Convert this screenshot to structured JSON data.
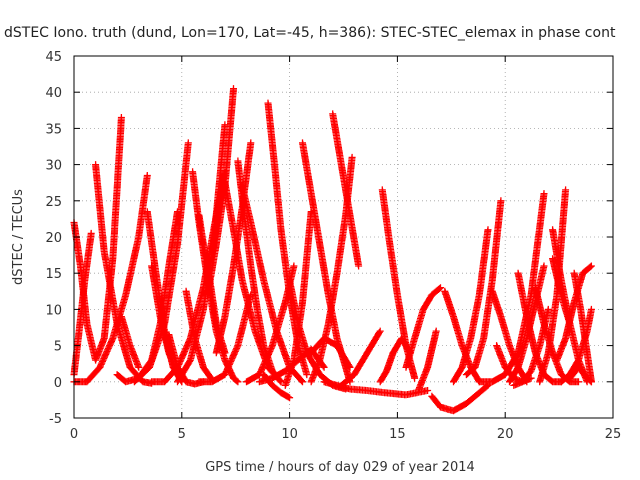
{
  "chart_data": {
    "type": "scatter",
    "title": "dSTEC Iono. truth (dund, Lon=170, Lat=-45, h=386): STEC-STEC_elemax in phase cont",
    "xlabel": "GPS time / hours of day 029 of year 2014",
    "ylabel": "dSTEC  / TECUs",
    "xlim": [
      0,
      25
    ],
    "ylim": [
      -5,
      45
    ],
    "xticks": [
      0,
      5,
      10,
      15,
      20,
      25
    ],
    "yticks": [
      -5,
      0,
      5,
      10,
      15,
      20,
      25,
      30,
      35,
      40,
      45
    ],
    "grid": true,
    "legend": "none",
    "marker": "plus",
    "color": "#ff0000",
    "arcs": [
      {
        "x": [
          0.0,
          0.3,
          0.6,
          1.0,
          1.4,
          1.8,
          2.2
        ],
        "y": [
          22,
          16,
          8,
          3,
          6,
          17,
          36.5
        ]
      },
      {
        "x": [
          0.0,
          0.2,
          0.5,
          0.8
        ],
        "y": [
          1,
          6,
          14,
          20.5
        ]
      },
      {
        "x": [
          0.0,
          0.6,
          1.2,
          1.8,
          2.4,
          3.0,
          3.4
        ],
        "y": [
          0,
          0,
          2,
          6,
          12,
          20,
          28.5
        ]
      },
      {
        "x": [
          1.0,
          1.4,
          2.0,
          2.6,
          3.2,
          3.6
        ],
        "y": [
          30,
          18,
          8,
          2,
          0,
          -0.2
        ]
      },
      {
        "x": [
          2.2,
          2.6,
          3.0
        ],
        "y": [
          9,
          5,
          2
        ]
      },
      {
        "x": [
          2.0,
          2.4,
          3.0,
          3.6,
          4.0,
          4.4,
          4.8
        ],
        "y": [
          1,
          0,
          0.5,
          3,
          8,
          16,
          23.5
        ]
      },
      {
        "x": [
          3.4,
          3.8,
          4.2,
          4.6,
          5.0
        ],
        "y": [
          23.5,
          15,
          7,
          2,
          0
        ]
      },
      {
        "x": [
          3.6,
          4.0,
          4.4,
          4.8,
          5.0
        ],
        "y": [
          16,
          9,
          4,
          1,
          0
        ]
      },
      {
        "x": [
          3.6,
          4.2,
          4.8,
          5.4,
          6.0,
          6.6,
          7.0
        ],
        "y": [
          0,
          0,
          2,
          6,
          13,
          23,
          29
        ]
      },
      {
        "x": [
          2.8,
          3.5,
          4.2,
          4.8,
          5.3
        ],
        "y": [
          0,
          2,
          8,
          19,
          33
        ]
      },
      {
        "x": [
          4.4,
          4.8,
          5.2,
          5.6,
          6.0
        ],
        "y": [
          6.5,
          2,
          0,
          -0.3,
          0
        ]
      },
      {
        "x": [
          5.2,
          5.6,
          6.0,
          6.4
        ],
        "y": [
          12.5,
          6,
          2,
          0.3
        ]
      },
      {
        "x": [
          5.5,
          5.8,
          6.2,
          6.6,
          7.0,
          7.4,
          7.6
        ],
        "y": [
          29,
          22,
          14,
          7,
          3,
          0.5,
          0
        ]
      },
      {
        "x": [
          4.8,
          5.4,
          6.0,
          6.5,
          7.0
        ],
        "y": [
          0,
          3,
          10,
          20,
          35.5
        ]
      },
      {
        "x": [
          5.8,
          6.0,
          6.3,
          6.6,
          7.0
        ],
        "y": [
          23,
          19,
          14,
          8,
          4
        ]
      },
      {
        "x": [
          5.8,
          6.4,
          7.0,
          7.6,
          8.2
        ],
        "y": [
          0,
          0,
          1,
          5,
          12
        ]
      },
      {
        "x": [
          6.2,
          6.6,
          7.0,
          7.4
        ],
        "y": [
          12,
          19,
          27,
          40.5
        ]
      },
      {
        "x": [
          7.0,
          7.4,
          7.8,
          8.4,
          9.0,
          9.6
        ],
        "y": [
          27.5,
          21,
          14,
          7,
          2,
          0
        ]
      },
      {
        "x": [
          7.6,
          7.9,
          8.2,
          8.5,
          8.8,
          9.2,
          9.6
        ],
        "y": [
          30.5,
          23,
          16,
          10,
          5,
          1.5,
          0
        ]
      },
      {
        "x": [
          6.6,
          7.0,
          7.4,
          7.8,
          8.2
        ],
        "y": [
          4,
          9,
          16,
          24,
          33
        ]
      },
      {
        "x": [
          7.8,
          8.2,
          8.8,
          9.4,
          10.0,
          10.6
        ],
        "y": [
          27,
          22,
          14,
          7,
          2,
          0
        ]
      },
      {
        "x": [
          9.0,
          9.3,
          9.6,
          10.0,
          10.4,
          10.8
        ],
        "y": [
          38.5,
          30,
          21,
          12,
          5,
          1
        ]
      },
      {
        "x": [
          8.0,
          8.6,
          9.2,
          9.8,
          10.2
        ],
        "y": [
          0,
          1,
          5,
          11,
          16
        ]
      },
      {
        "x": [
          8.6,
          9.2,
          9.8,
          10.4,
          11.0,
          11.6
        ],
        "y": [
          0,
          0.5,
          1.5,
          3,
          4.5,
          2
        ]
      },
      {
        "x": [
          8.8,
          9.2,
          9.6,
          10.0
        ],
        "y": [
          1,
          -0.5,
          -1.5,
          -2.2
        ]
      },
      {
        "x": [
          10.0,
          10.4,
          10.8,
          11.4,
          12.0,
          12.6
        ],
        "y": [
          14,
          8,
          4,
          1,
          -0.5,
          -1
        ]
      },
      {
        "x": [
          9.8,
          10.2,
          10.6,
          11.0
        ],
        "y": [
          -0.5,
          3,
          11,
          23.5
        ]
      },
      {
        "x": [
          10.6,
          11.0,
          11.4,
          11.8,
          12.2,
          12.8
        ],
        "y": [
          33,
          26,
          19,
          12,
          6,
          0
        ]
      },
      {
        "x": [
          11.0,
          11.4,
          11.8,
          12.2,
          12.6,
          12.9
        ],
        "y": [
          0,
          3,
          8,
          15,
          23,
          31
        ]
      },
      {
        "x": [
          11.0,
          11.6,
          12.2,
          12.8
        ],
        "y": [
          4,
          6,
          5,
          2
        ]
      },
      {
        "x": [
          12.0,
          12.4,
          12.8,
          13.2
        ],
        "y": [
          37,
          30,
          23,
          16
        ]
      },
      {
        "x": [
          12.4,
          13.0,
          13.6,
          14.2
        ],
        "y": [
          -0.5,
          1,
          4,
          7
        ]
      },
      {
        "x": [
          11.6,
          12.2,
          12.8,
          13.6,
          14.4,
          15.4,
          16.4
        ],
        "y": [
          0,
          -0.5,
          -1,
          -1.2,
          -1.5,
          -1.8,
          -1.2
        ]
      },
      {
        "x": [
          14.3,
          14.6,
          15.0,
          15.4,
          15.8
        ],
        "y": [
          26.5,
          20,
          12,
          5,
          0.5
        ]
      },
      {
        "x": [
          14.2,
          14.5,
          14.8,
          15.2,
          15.6
        ],
        "y": [
          0,
          1.5,
          4,
          6,
          4
        ]
      },
      {
        "x": [
          15.4,
          15.8,
          16.2,
          16.6,
          17.0
        ],
        "y": [
          2,
          6,
          10,
          12,
          13
        ]
      },
      {
        "x": [
          16.0,
          16.4,
          16.8
        ],
        "y": [
          -1,
          2,
          7
        ]
      },
      {
        "x": [
          16.6,
          17.0,
          17.6,
          18.2,
          18.8,
          19.2
        ],
        "y": [
          -2,
          -3.5,
          -4,
          -3,
          -1.5,
          -0.5
        ]
      },
      {
        "x": [
          17.2,
          17.6,
          18.0,
          18.4,
          18.8
        ],
        "y": [
          12.5,
          9,
          5,
          2,
          0
        ]
      },
      {
        "x": [
          17.6,
          18.0,
          18.4,
          18.8,
          19.2
        ],
        "y": [
          0,
          2,
          6,
          12,
          21
        ]
      },
      {
        "x": [
          18.2,
          18.6,
          19.0,
          19.4,
          19.8
        ],
        "y": [
          1,
          2,
          6,
          14,
          25
        ]
      },
      {
        "x": [
          19.4,
          19.8,
          20.2,
          20.6,
          21.0
        ],
        "y": [
          12.5,
          9,
          5,
          2,
          0
        ]
      },
      {
        "x": [
          18.8,
          19.4,
          20.0,
          20.6,
          21.2,
          21.8
        ],
        "y": [
          0,
          0,
          1,
          4,
          12,
          26
        ]
      },
      {
        "x": [
          19.6,
          20.0,
          20.4,
          20.8,
          21.2
        ],
        "y": [
          5,
          2,
          0.5,
          0,
          0.5
        ]
      },
      {
        "x": [
          20.6,
          21.0,
          21.4,
          21.8,
          22.2,
          22.6
        ],
        "y": [
          15,
          9,
          4,
          1,
          0,
          0
        ]
      },
      {
        "x": [
          20.2,
          20.6,
          21.0,
          21.4,
          21.8
        ],
        "y": [
          0,
          2,
          6,
          11,
          16
        ]
      },
      {
        "x": [
          21.4,
          21.8,
          22.2,
          22.6,
          23.0,
          23.4
        ],
        "y": [
          13,
          8,
          4,
          1,
          0,
          0
        ]
      },
      {
        "x": [
          21.6,
          22.0,
          22.4,
          22.8
        ],
        "y": [
          0,
          4,
          12,
          26.5
        ]
      },
      {
        "x": [
          22.2,
          22.6,
          23.0,
          23.4,
          23.8
        ],
        "y": [
          21,
          14,
          8,
          3,
          0
        ]
      },
      {
        "x": [
          22.4,
          22.8,
          23.2,
          23.6,
          24.0
        ],
        "y": [
          3,
          6,
          11,
          15,
          16
        ]
      },
      {
        "x": [
          22.6,
          23.0,
          23.4,
          23.8,
          24.0
        ],
        "y": [
          0,
          1,
          3,
          7,
          10
        ]
      },
      {
        "x": [
          23.0,
          23.4,
          23.8,
          24.0
        ],
        "y": [
          0.5,
          2,
          0.5,
          0
        ]
      },
      {
        "x": [
          22.2,
          22.6,
          23.0
        ],
        "y": [
          17,
          12,
          8
        ]
      },
      {
        "x": [
          20.4,
          20.8,
          21.2,
          21.6,
          22.0
        ],
        "y": [
          -0.5,
          0,
          1.5,
          5,
          10
        ]
      },
      {
        "x": [
          23.2,
          23.5,
          23.8,
          24.0
        ],
        "y": [
          15,
          10,
          4,
          0
        ]
      }
    ]
  }
}
